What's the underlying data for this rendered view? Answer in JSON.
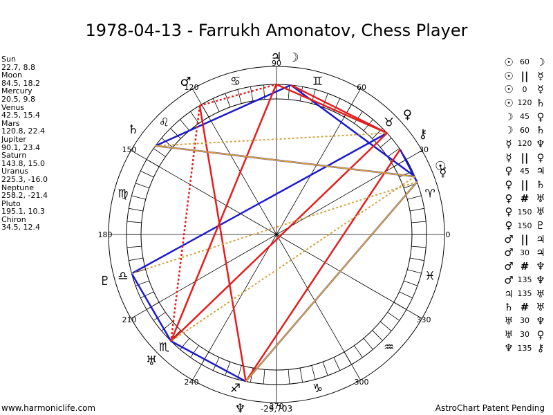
{
  "title": "1978-04-13 - Farrukh Amonatov, Chess Player",
  "footer": {
    "left": "www.harmoniclife.com",
    "right": "AstroChart Patent Pending"
  },
  "center_value": "-29,703",
  "degree_labels": [
    "0",
    "30",
    "60",
    "90",
    "120",
    "150",
    "180",
    "210",
    "240",
    "270",
    "300",
    "330"
  ],
  "zodiac": [
    "aries-glyph",
    "taurus-glyph",
    "gemini-glyph",
    "cancer-glyph",
    "leo-glyph",
    "virgo-glyph",
    "libra-glyph",
    "scorpio-glyph",
    "sagittarius-glyph",
    "capricorn-glyph",
    "aquarius-glyph",
    "pisces-glyph"
  ],
  "planets": [
    {
      "name": "Sun",
      "values": "22.7, 8.8"
    },
    {
      "name": "Moon",
      "values": "84.5, 18.2"
    },
    {
      "name": "Mercury",
      "values": "20.5, 9.8"
    },
    {
      "name": "Venus",
      "values": "42.5, 15.4"
    },
    {
      "name": "Mars",
      "values": "120.8, 22.4"
    },
    {
      "name": "Jupiter",
      "values": "90.1, 23.4"
    },
    {
      "name": "Saturn",
      "values": "143.8, 15.0"
    },
    {
      "name": "Uranus",
      "values": "225.3, -16.0"
    },
    {
      "name": "Neptune",
      "values": "258.2, -21.4"
    },
    {
      "name": "Pluto",
      "values": "195.1, 10.3"
    },
    {
      "name": "Chiron",
      "values": "34.5, 12.4"
    }
  ],
  "aspects": [
    {
      "p1": "sun-glyph",
      "angle": "60",
      "p2": "moon-glyph"
    },
    {
      "p1": "sun-glyph",
      "angle": "||",
      "p2": "mercury-glyph"
    },
    {
      "p1": "sun-glyph",
      "angle": "0",
      "p2": "mercury-glyph"
    },
    {
      "p1": "sun-glyph",
      "angle": "120",
      "p2": "saturn-glyph"
    },
    {
      "p1": "moon-glyph",
      "angle": "45",
      "p2": "venus-glyph"
    },
    {
      "p1": "moon-glyph",
      "angle": "60",
      "p2": "saturn-glyph"
    },
    {
      "p1": "mercury-glyph",
      "angle": "120",
      "p2": "neptune-glyph"
    },
    {
      "p1": "mercury-glyph",
      "angle": "||",
      "p2": "venus-glyph"
    },
    {
      "p1": "venus-glyph",
      "angle": "45",
      "p2": "jupiter-glyph"
    },
    {
      "p1": "venus-glyph",
      "angle": "||",
      "p2": "saturn-glyph"
    },
    {
      "p1": "venus-glyph",
      "angle": "#",
      "p2": "uranus-glyph"
    },
    {
      "p1": "venus-glyph",
      "angle": "150",
      "p2": "uranus-glyph"
    },
    {
      "p1": "venus-glyph",
      "angle": "150",
      "p2": "pluto-glyph"
    },
    {
      "p1": "mars-glyph",
      "angle": "||",
      "p2": "jupiter-glyph"
    },
    {
      "p1": "mars-glyph",
      "angle": "30",
      "p2": "jupiter-glyph"
    },
    {
      "p1": "mars-glyph",
      "angle": "#",
      "p2": "neptune-glyph"
    },
    {
      "p1": "mars-glyph",
      "angle": "135",
      "p2": "neptune-glyph"
    },
    {
      "p1": "jupiter-glyph",
      "angle": "135",
      "p2": "uranus-glyph"
    },
    {
      "p1": "saturn-glyph",
      "angle": "#",
      "p2": "uranus-glyph"
    },
    {
      "p1": "uranus-glyph",
      "angle": "30",
      "p2": "neptune-glyph"
    },
    {
      "p1": "uranus-glyph",
      "angle": "30",
      "p2": "venus-glyph"
    },
    {
      "p1": "neptune-glyph",
      "angle": "135",
      "p2": "chiron-glyph"
    }
  ],
  "colors": {
    "blue": "#1a1ad0",
    "red": "#e51c1c",
    "gold": "#d4a03a",
    "black": "#000000"
  }
}
